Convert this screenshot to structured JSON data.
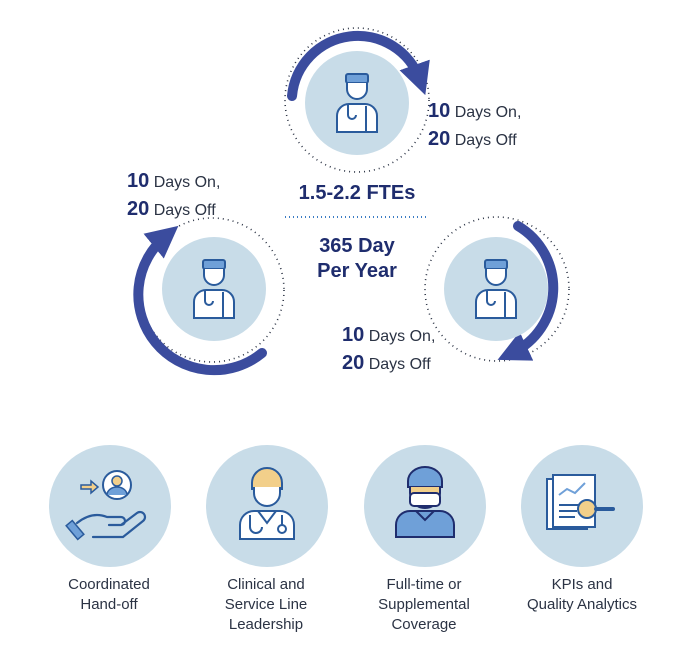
{
  "rotation": {
    "top": {
      "days_on_num": "10",
      "days_on_text": "Days On,",
      "days_off_num": "20",
      "days_off_text": "Days Off",
      "icon": "doctor-icon"
    },
    "left": {
      "days_on_num": "10",
      "days_on_text": "Days On,",
      "days_off_num": "20",
      "days_off_text": "Days Off",
      "icon": "doctor-icon"
    },
    "right": {
      "days_on_num": "10",
      "days_on_text": "Days On,",
      "days_off_num": "20",
      "days_off_text": "Days Off",
      "icon": "doctor-icon"
    },
    "ftes": "1.5-2.2 FTEs",
    "coverage_line1": "365 Day",
    "coverage_line2": "Per Year"
  },
  "services": [
    {
      "line1": "Coordinated",
      "line2": "Hand-off",
      "line3": "",
      "icon": "handoff-icon"
    },
    {
      "line1": "Clinical and",
      "line2": "Service Line",
      "line3": "Leadership",
      "icon": "clinician-icon"
    },
    {
      "line1": "Full-time or",
      "line2": "Supplemental",
      "line3": "Coverage",
      "icon": "surgeon-icon"
    },
    {
      "line1": "KPIs and",
      "line2": "Quality Analytics",
      "line3": "",
      "icon": "analytics-icon"
    }
  ],
  "colors": {
    "navy": "#1f2d6e",
    "arc": "#3b4c9e",
    "circle": "#c8dce8",
    "icon": "#2a5b9c",
    "icon_fill": "#6fa0d8"
  }
}
